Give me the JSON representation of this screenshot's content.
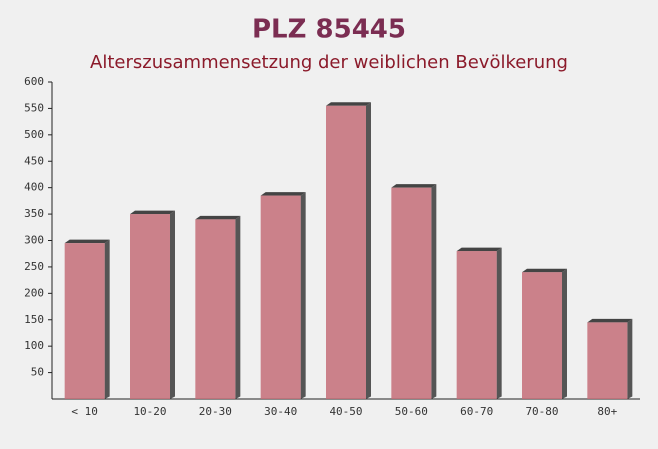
{
  "chart_data": {
    "type": "bar",
    "title": "PLZ 85445",
    "subtitle": "Alterszusammensetzung der weiblichen Bevölkerung",
    "categories": [
      "< 10",
      "10-20",
      "20-30",
      "30-40",
      "40-50",
      "50-60",
      "60-70",
      "70-80",
      "80+"
    ],
    "values": [
      295,
      350,
      340,
      385,
      555,
      400,
      280,
      240,
      145
    ],
    "color": "#c46d78",
    "ylim": [
      0,
      600
    ],
    "yticks": [
      50,
      100,
      150,
      200,
      250,
      300,
      350,
      400,
      450,
      500,
      550,
      600
    ],
    "grid": false
  }
}
